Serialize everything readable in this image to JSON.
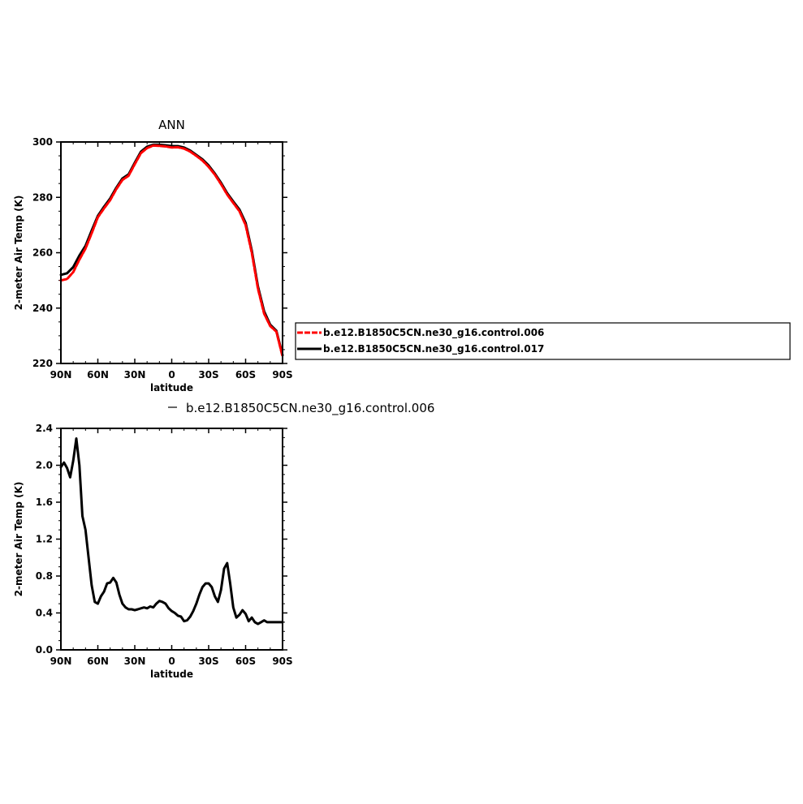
{
  "chart_data": [
    {
      "type": "line",
      "title": "ANN",
      "xlabel": "latitude",
      "ylabel": "2-meter Air Temp (K)",
      "xlim": [
        90,
        -90
      ],
      "ylim": [
        220,
        300
      ],
      "xticks": [
        90,
        60,
        30,
        0,
        -30,
        -60,
        -90
      ],
      "xtick_labels": [
        "90N",
        "60N",
        "30N",
        "0",
        "30S",
        "60S",
        "90S"
      ],
      "yticks": [
        220,
        240,
        260,
        280,
        300
      ],
      "ytick_labels": [
        "220",
        "240",
        "260",
        "280",
        "300"
      ],
      "legend_position": "right",
      "series": [
        {
          "name": "b.e12.B1850C5CN.ne30_g16.control.006",
          "color": "#ff0000",
          "dash": "dashed",
          "x": [
            90,
            85,
            80,
            75,
            70,
            65,
            60,
            55,
            50,
            45,
            40,
            35,
            30,
            25,
            20,
            15,
            10,
            5,
            0,
            -5,
            -10,
            -15,
            -20,
            -25,
            -30,
            -35,
            -40,
            -45,
            -50,
            -55,
            -60,
            -65,
            -70,
            -75,
            -80,
            -85,
            -90
          ],
          "y": [
            250.0,
            250.5,
            253.0,
            257.5,
            261.5,
            267.0,
            272.8,
            276.0,
            279.0,
            283.0,
            286.3,
            287.8,
            292.0,
            296.0,
            297.8,
            298.7,
            298.6,
            298.4,
            298.0,
            298.1,
            297.6,
            296.5,
            295.0,
            293.3,
            291.0,
            288.2,
            284.8,
            281.0,
            278.0,
            275.0,
            270.0,
            260.0,
            247.0,
            238.0,
            233.5,
            231.5,
            222.5
          ]
        },
        {
          "name": "b.e12.B1850C5CN.ne30_g16.control.017",
          "color": "#000000",
          "dash": "solid",
          "x": [
            90,
            85,
            80,
            75,
            70,
            65,
            60,
            55,
            50,
            45,
            40,
            35,
            30,
            25,
            20,
            15,
            10,
            5,
            0,
            -5,
            -10,
            -15,
            -20,
            -25,
            -30,
            -35,
            -40,
            -45,
            -50,
            -55,
            -60,
            -65,
            -70,
            -75,
            -80,
            -85,
            -90
          ],
          "y": [
            252.0,
            252.6,
            254.8,
            259.0,
            262.5,
            268.0,
            273.3,
            276.6,
            279.6,
            283.5,
            286.8,
            288.3,
            292.5,
            296.5,
            298.3,
            299.0,
            299.0,
            298.8,
            298.5,
            298.5,
            298.0,
            296.9,
            295.3,
            293.7,
            291.5,
            288.6,
            285.3,
            281.5,
            278.5,
            275.6,
            270.8,
            260.8,
            247.8,
            238.8,
            234.0,
            231.8,
            223.0
          ]
        }
      ]
    },
    {
      "type": "line",
      "title": "",
      "xlabel": "latitude",
      "ylabel": "2-meter Air Temp (K)",
      "xlim": [
        90,
        -90
      ],
      "ylim": [
        0.0,
        2.4
      ],
      "xticks": [
        90,
        60,
        30,
        0,
        -30,
        -60,
        -90
      ],
      "xtick_labels": [
        "90N",
        "60N",
        "30N",
        "0",
        "30S",
        "60S",
        "90S"
      ],
      "yticks": [
        0.0,
        0.4,
        0.8,
        1.2,
        1.6,
        2.0,
        2.4
      ],
      "ytick_labels": [
        "0.0",
        "0.4",
        "0.8",
        "1.2",
        "1.6",
        "2.0",
        "2.4"
      ],
      "legend_position": "top",
      "series": [
        {
          "name": "b.e12.B1850C5CN.ne30_g16.control.006",
          "color": "#000000",
          "dash": "solid",
          "x": [
            90,
            87.5,
            85,
            82.5,
            80,
            77.5,
            75,
            72.5,
            70,
            67.5,
            65,
            62.5,
            60,
            57.5,
            55,
            52.5,
            50,
            47.5,
            45,
            42.5,
            40,
            37.5,
            35,
            32.5,
            30,
            27.5,
            25,
            22.5,
            20,
            17.5,
            15,
            12.5,
            10,
            7.5,
            5,
            2.5,
            0,
            -2.5,
            -5,
            -7.5,
            -10,
            -12.5,
            -15,
            -17.5,
            -20,
            -22.5,
            -25,
            -27.5,
            -30,
            -32.5,
            -35,
            -37.5,
            -40,
            -42.5,
            -45,
            -47.5,
            -50,
            -52.5,
            -55,
            -57.5,
            -60,
            -62.5,
            -65,
            -67.5,
            -70,
            -72.5,
            -75,
            -77.5,
            -80,
            -82.5,
            -85,
            -87.5,
            -90
          ],
          "y": [
            1.98,
            2.03,
            1.97,
            1.87,
            2.05,
            2.29,
            2.0,
            1.45,
            1.3,
            1.0,
            0.7,
            0.52,
            0.5,
            0.58,
            0.63,
            0.72,
            0.73,
            0.78,
            0.73,
            0.6,
            0.5,
            0.46,
            0.44,
            0.44,
            0.43,
            0.44,
            0.45,
            0.46,
            0.45,
            0.47,
            0.46,
            0.5,
            0.53,
            0.52,
            0.5,
            0.45,
            0.42,
            0.4,
            0.37,
            0.36,
            0.31,
            0.32,
            0.36,
            0.42,
            0.5,
            0.6,
            0.68,
            0.72,
            0.72,
            0.68,
            0.58,
            0.52,
            0.65,
            0.88,
            0.94,
            0.72,
            0.46,
            0.35,
            0.38,
            0.43,
            0.39,
            0.31,
            0.35,
            0.3,
            0.28,
            0.3,
            0.32,
            0.3,
            0.3,
            0.3,
            0.3,
            0.3,
            0.3
          ]
        }
      ]
    }
  ]
}
